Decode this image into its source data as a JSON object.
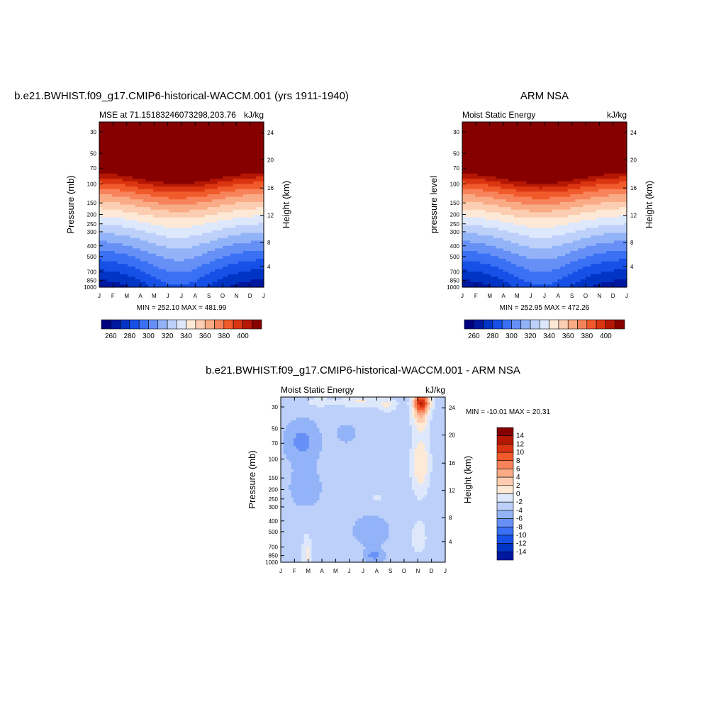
{
  "colors": {
    "palette": [
      "#00007f",
      "#0018a0",
      "#0034c4",
      "#1650e6",
      "#3a70f4",
      "#6690f6",
      "#93b3f8",
      "#bcd0fa",
      "#dde8fd",
      "#fde9d6",
      "#fccdb0",
      "#f9ab86",
      "#f7835b",
      "#f15a2a",
      "#da3410",
      "#b41704",
      "#870000"
    ],
    "axis": "#000000"
  },
  "chart_data": [
    {
      "id": "model",
      "type": "contour",
      "title": "b.e21.BWHIST.f09_g17.CMIP6-historical-WACCM.001 (yrs 1911-1940)",
      "left_string": "MSE at 71.15183246073298,203.76",
      "right_string": "kJ/kg",
      "ylabel": "Pressure (mb)",
      "ylabel_right": "Height (km)",
      "y_ticks": [
        "30",
        "50",
        "70",
        "100",
        "150",
        "200",
        "250",
        "300",
        "400",
        "500",
        "700",
        "850",
        "1000"
      ],
      "y_ticks_right": [
        "24",
        "20",
        "16",
        "12",
        "8",
        "4"
      ],
      "x_ticks": [
        "J",
        "F",
        "M",
        "A",
        "M",
        "J",
        "J",
        "A",
        "S",
        "O",
        "N",
        "D",
        "J"
      ],
      "stats": "MIN = 252.10 MAX = 481.99",
      "colorbar": {
        "orientation": "horizontal",
        "labels": [
          "260",
          "280",
          "300",
          "320",
          "340",
          "360",
          "380",
          "400"
        ]
      }
    },
    {
      "id": "obs",
      "type": "contour",
      "title": "ARM NSA",
      "left_string": "Moist Static Energy",
      "right_string": "kJ/kg",
      "ylabel": "pressure level",
      "ylabel_right": "Height (km)",
      "y_ticks": [
        "30",
        "50",
        "70",
        "100",
        "150",
        "200",
        "250",
        "300",
        "400",
        "500",
        "700",
        "850",
        "1000"
      ],
      "y_ticks_right": [
        "24",
        "20",
        "16",
        "12",
        "8",
        "4"
      ],
      "x_ticks": [
        "J",
        "F",
        "M",
        "A",
        "M",
        "J",
        "J",
        "A",
        "S",
        "O",
        "N",
        "D",
        "J"
      ],
      "stats": "MIN = 252.95 MAX = 472.26",
      "colorbar": {
        "orientation": "horizontal",
        "labels": [
          "260",
          "280",
          "300",
          "320",
          "340",
          "360",
          "380",
          "400"
        ]
      }
    },
    {
      "id": "diff",
      "type": "contour",
      "title": "b.e21.BWHIST.f09_g17.CMIP6-historical-WACCM.001 - ARM NSA",
      "left_string": "Moist Static Energy",
      "right_string": "kJ/kg",
      "ylabel": "Pressure (mb)",
      "ylabel_right": "Height (km)",
      "y_ticks": [
        "30",
        "50",
        "70",
        "100",
        "150",
        "200",
        "250",
        "300",
        "400",
        "500",
        "700",
        "850",
        "1000"
      ],
      "y_ticks_right": [
        "24",
        "20",
        "16",
        "12",
        "8",
        "4"
      ],
      "x_ticks": [
        "J",
        "F",
        "M",
        "A",
        "M",
        "J",
        "J",
        "A",
        "S",
        "O",
        "N",
        "D",
        "J"
      ],
      "stats": "MIN = -10.01 MAX =  20.31",
      "colorbar": {
        "orientation": "vertical",
        "labels": [
          "14",
          "12",
          "10",
          "8",
          "6",
          "4",
          "2",
          "0",
          "-2",
          "-4",
          "-6",
          "-8",
          "-10",
          "-12",
          "-14"
        ]
      }
    }
  ]
}
